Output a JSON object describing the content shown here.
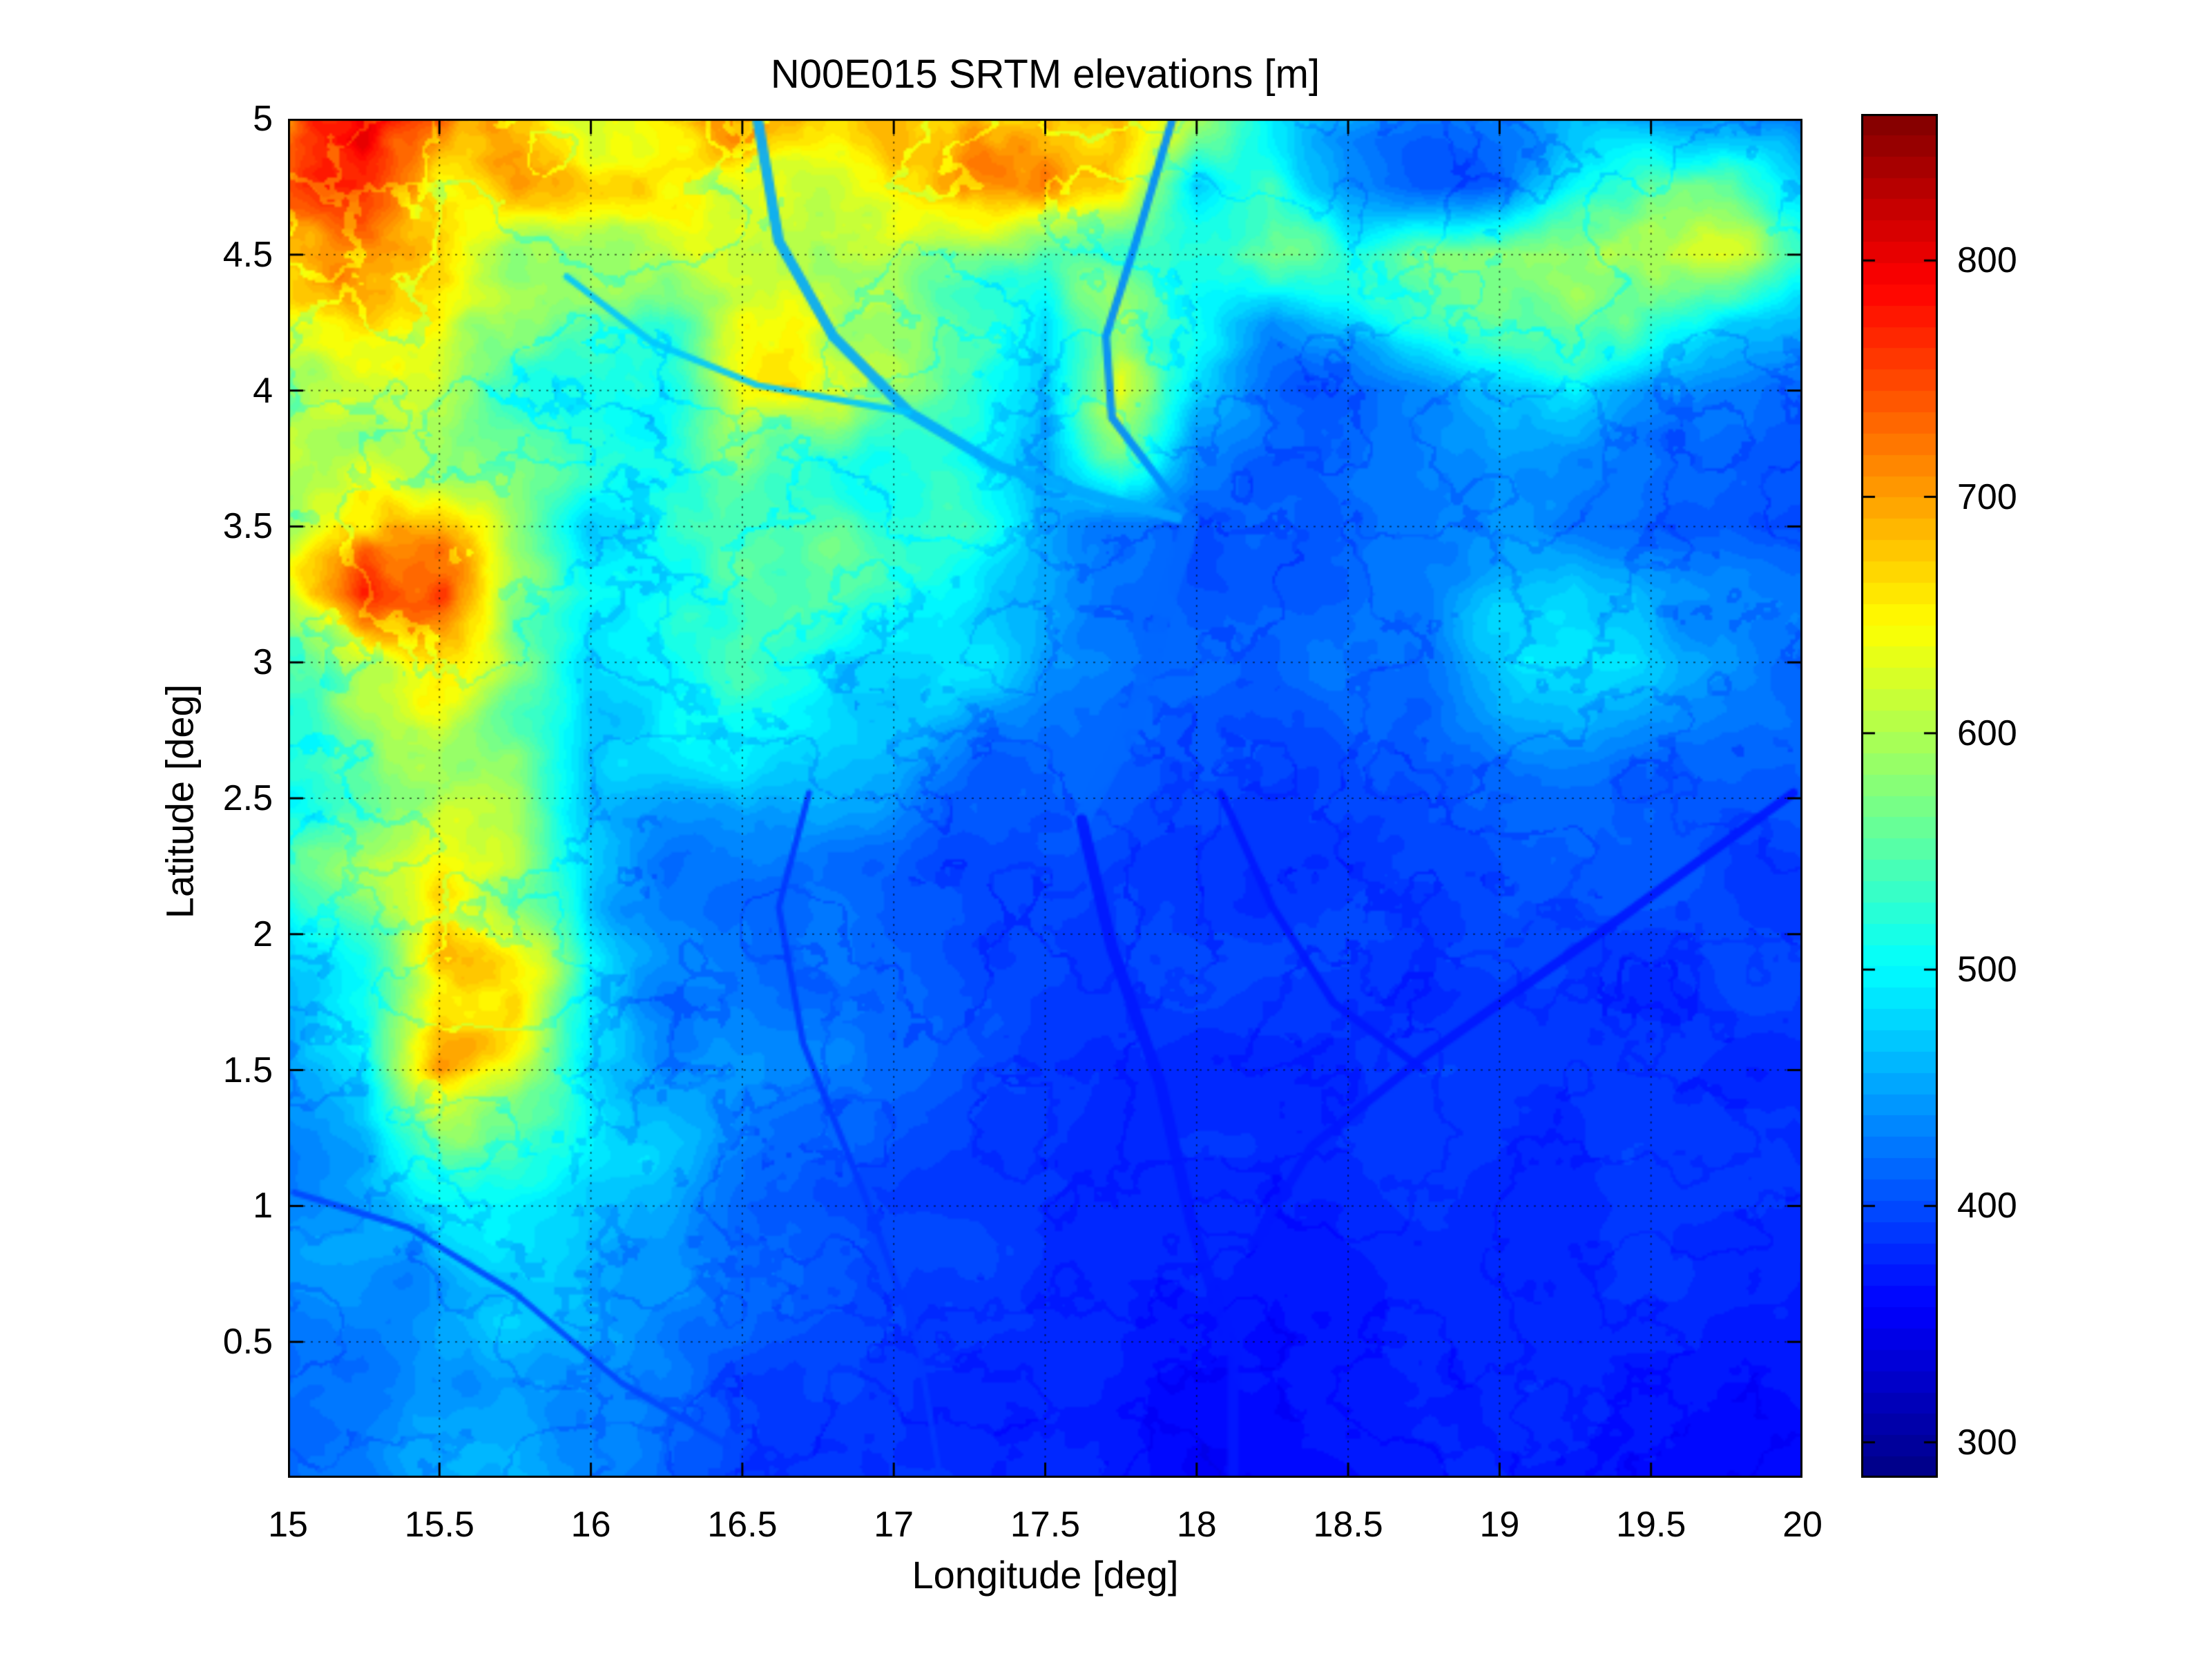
{
  "title": "N00E015 SRTM elevations [m]",
  "axes": {
    "xlabel": "Longitude [deg]",
    "ylabel": "Latitude [deg]",
    "xlim": [
      15,
      20
    ],
    "ylim": [
      0,
      5
    ],
    "grid": "on",
    "xticks": {
      "values": [
        15,
        15.5,
        16,
        16.5,
        17,
        17.5,
        18,
        18.5,
        19,
        19.5,
        20
      ],
      "labels": [
        "15",
        "15.5",
        "16",
        "16.5",
        "17",
        "17.5",
        "18",
        "18.5",
        "19",
        "19.5",
        "20"
      ]
    },
    "yticks": {
      "values": [
        0.5,
        1,
        1.5,
        2,
        2.5,
        3,
        3.5,
        4,
        4.5,
        5
      ],
      "labels": [
        "0.5",
        "1",
        "1.5",
        "2",
        "2.5",
        "3",
        "3.5",
        "4",
        "4.5",
        "5"
      ]
    }
  },
  "colorbar": {
    "cmin": 285,
    "cmax": 862,
    "ticks": {
      "values": [
        300,
        400,
        500,
        600,
        700,
        800
      ],
      "labels": [
        "300",
        "400",
        "500",
        "600",
        "700",
        "800"
      ]
    },
    "colormap": "jet",
    "colormap_stops": [
      [
        0.0,
        "#000084"
      ],
      [
        0.125,
        "#0000ff"
      ],
      [
        0.375,
        "#00ffff"
      ],
      [
        0.625,
        "#ffff00"
      ],
      [
        0.875,
        "#ff0000"
      ],
      [
        1.0,
        "#800000"
      ]
    ],
    "levels": 64
  },
  "chart_data": {
    "type": "heatmap",
    "title": "N00E015 SRTM elevations [m]",
    "xlabel": "Longitude [deg]",
    "ylabel": "Latitude [deg]",
    "units": "m",
    "xlim": [
      15,
      20
    ],
    "ylim": [
      0,
      5
    ],
    "caxis": [
      285,
      862
    ],
    "lon": [
      15,
      15.25,
      15.5,
      15.75,
      16,
      16.25,
      16.5,
      16.75,
      17,
      17.25,
      17.5,
      17.75,
      18,
      18.25,
      18.5,
      18.75,
      19,
      19.25,
      19.5,
      19.75,
      20
    ],
    "lat_rows_top_to_bottom": [
      5,
      4.75,
      4.5,
      4.25,
      4,
      3.75,
      3.5,
      3.25,
      3,
      2.75,
      2.5,
      2.25,
      2,
      1.75,
      1.5,
      1.25,
      1,
      0.75,
      0.5,
      0.25,
      0
    ],
    "elevation_m": [
      [
        690,
        780,
        720,
        645,
        620,
        660,
        700,
        660,
        660,
        700,
        710,
        700,
        560,
        480,
        440,
        420,
        430,
        470,
        430,
        450,
        430
      ],
      [
        700,
        760,
        680,
        640,
        610,
        630,
        650,
        620,
        640,
        660,
        690,
        650,
        450,
        520,
        440,
        420,
        430,
        520,
        600,
        560,
        480
      ],
      [
        640,
        660,
        680,
        620,
        600,
        620,
        640,
        600,
        620,
        600,
        560,
        520,
        540,
        560,
        500,
        560,
        600,
        620,
        640,
        600,
        520
      ],
      [
        610,
        630,
        650,
        610,
        590,
        560,
        620,
        640,
        620,
        560,
        480,
        600,
        520,
        440,
        480,
        520,
        560,
        600,
        560,
        480,
        440
      ],
      [
        600,
        620,
        600,
        580,
        560,
        540,
        600,
        620,
        580,
        520,
        460,
        620,
        480,
        430,
        420,
        440,
        460,
        480,
        440,
        430,
        420
      ],
      [
        630,
        650,
        620,
        560,
        540,
        560,
        580,
        560,
        540,
        480,
        440,
        560,
        430,
        420,
        420,
        430,
        440,
        430,
        420,
        420,
        410
      ],
      [
        640,
        700,
        680,
        560,
        480,
        540,
        560,
        540,
        520,
        500,
        440,
        420,
        410,
        415,
        420,
        425,
        430,
        420,
        415,
        415,
        410
      ],
      [
        620,
        740,
        720,
        560,
        500,
        520,
        540,
        520,
        500,
        480,
        440,
        420,
        410,
        410,
        415,
        430,
        460,
        470,
        460,
        440,
        420
      ],
      [
        560,
        640,
        680,
        560,
        480,
        500,
        520,
        510,
        490,
        470,
        440,
        420,
        405,
        405,
        420,
        440,
        480,
        490,
        470,
        440,
        420
      ],
      [
        540,
        580,
        620,
        540,
        460,
        480,
        500,
        490,
        470,
        440,
        420,
        410,
        400,
        400,
        410,
        430,
        450,
        460,
        440,
        420,
        410
      ],
      [
        540,
        580,
        620,
        560,
        460,
        440,
        470,
        460,
        440,
        420,
        410,
        400,
        395,
        395,
        400,
        410,
        420,
        420,
        410,
        405,
        400
      ],
      [
        520,
        560,
        640,
        600,
        500,
        440,
        440,
        430,
        420,
        410,
        405,
        398,
        392,
        392,
        395,
        400,
        405,
        405,
        400,
        398,
        395
      ],
      [
        480,
        520,
        640,
        620,
        480,
        440,
        430,
        420,
        410,
        405,
        400,
        395,
        390,
        390,
        392,
        395,
        398,
        398,
        395,
        392,
        390
      ],
      [
        460,
        500,
        660,
        640,
        500,
        450,
        430,
        420,
        408,
        402,
        396,
        392,
        388,
        386,
        388,
        390,
        392,
        392,
        390,
        388,
        386
      ],
      [
        450,
        480,
        640,
        620,
        490,
        460,
        440,
        420,
        405,
        398,
        392,
        388,
        385,
        383,
        385,
        388,
        390,
        388,
        386,
        384,
        382
      ],
      [
        440,
        470,
        560,
        540,
        480,
        460,
        430,
        415,
        400,
        394,
        390,
        386,
        382,
        380,
        382,
        385,
        388,
        386,
        384,
        382,
        380
      ],
      [
        430,
        450,
        500,
        490,
        460,
        440,
        420,
        408,
        398,
        392,
        386,
        382,
        378,
        376,
        378,
        382,
        386,
        384,
        382,
        380,
        378
      ],
      [
        430,
        440,
        470,
        470,
        450,
        430,
        415,
        402,
        394,
        388,
        382,
        378,
        374,
        372,
        374,
        378,
        382,
        382,
        380,
        378,
        376
      ],
      [
        420,
        430,
        450,
        460,
        440,
        420,
        408,
        396,
        390,
        384,
        378,
        374,
        370,
        368,
        370,
        374,
        378,
        378,
        376,
        374,
        372
      ],
      [
        415,
        425,
        445,
        450,
        430,
        415,
        400,
        392,
        386,
        380,
        374,
        370,
        366,
        364,
        366,
        370,
        374,
        374,
        372,
        370,
        368
      ],
      [
        410,
        420,
        440,
        445,
        425,
        410,
        396,
        388,
        382,
        376,
        370,
        366,
        362,
        360,
        362,
        366,
        370,
        370,
        368,
        366,
        364
      ]
    ],
    "rivers": [
      {
        "elev_m": 450,
        "width_deg": 0.035,
        "path": [
          [
            16.55,
            5.0
          ],
          [
            16.62,
            4.55
          ],
          [
            16.8,
            4.2
          ],
          [
            17.05,
            3.92
          ],
          [
            17.35,
            3.72
          ],
          [
            17.7,
            3.6
          ],
          [
            17.98,
            3.52
          ]
        ]
      },
      {
        "elev_m": 470,
        "width_deg": 0.022,
        "path": [
          [
            15.92,
            4.42
          ],
          [
            16.2,
            4.18
          ],
          [
            16.55,
            4.02
          ],
          [
            17.05,
            3.92
          ]
        ]
      },
      {
        "elev_m": 430,
        "width_deg": 0.026,
        "path": [
          [
            17.92,
            5.0
          ],
          [
            17.8,
            4.55
          ],
          [
            17.7,
            4.2
          ],
          [
            17.72,
            3.9
          ],
          [
            17.98,
            3.52
          ]
        ]
      },
      {
        "elev_m": 415,
        "width_deg": 0.06,
        "path": [
          [
            17.98,
            3.52
          ],
          [
            17.88,
            3.15
          ],
          [
            17.78,
            2.75
          ],
          [
            17.62,
            2.42
          ]
        ]
      },
      {
        "elev_m": 372,
        "width_deg": 0.038,
        "path": [
          [
            17.62,
            2.42
          ],
          [
            17.72,
            1.95
          ],
          [
            17.88,
            1.45
          ],
          [
            17.98,
            0.95
          ],
          [
            18.12,
            0.45
          ],
          [
            18.12,
            0.02
          ]
        ]
      },
      {
        "elev_m": 368,
        "width_deg": 0.03,
        "path": [
          [
            19.97,
            2.52
          ],
          [
            19.35,
            2.02
          ],
          [
            18.75,
            1.55
          ],
          [
            18.38,
            1.22
          ],
          [
            18.18,
            0.85
          ]
        ]
      },
      {
        "elev_m": 372,
        "width_deg": 0.025,
        "path": [
          [
            18.08,
            2.52
          ],
          [
            18.25,
            2.1
          ],
          [
            18.45,
            1.75
          ],
          [
            18.75,
            1.5
          ]
        ]
      },
      {
        "elev_m": 385,
        "width_deg": 0.02,
        "path": [
          [
            16.72,
            2.52
          ],
          [
            16.62,
            2.1
          ],
          [
            16.7,
            1.6
          ],
          [
            16.9,
            1.05
          ],
          [
            17.08,
            0.5
          ],
          [
            17.15,
            0.02
          ]
        ]
      },
      {
        "elev_m": 400,
        "width_deg": 0.02,
        "path": [
          [
            15.02,
            1.05
          ],
          [
            15.4,
            0.92
          ],
          [
            15.75,
            0.68
          ],
          [
            16.1,
            0.35
          ],
          [
            16.45,
            0.12
          ]
        ]
      }
    ]
  },
  "layout_colors": {
    "frame": "#000000",
    "grid_dots": "#000000",
    "background": "#ffffff"
  }
}
